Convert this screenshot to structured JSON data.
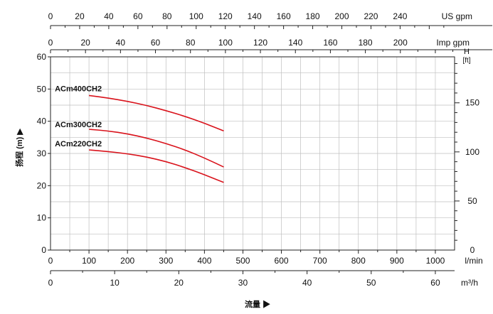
{
  "chart_data": {
    "type": "line",
    "colors": {
      "curve": "#d9121b",
      "grid": "#bfbfbf",
      "axis": "#222222"
    },
    "grid": true,
    "flow_axis": {
      "unit": "l/min",
      "range": [
        0,
        1050
      ],
      "ticks": [
        "0",
        "100",
        "200",
        "300",
        "400",
        "500",
        "600",
        "700",
        "800",
        "900",
        "1000"
      ],
      "tick_values": [
        0,
        100,
        200,
        300,
        400,
        500,
        600,
        700,
        800,
        900,
        1000
      ]
    },
    "m3h_axis": {
      "unit": "m³/h",
      "range": [
        0,
        63
      ],
      "ticks": [
        "0",
        "10",
        "20",
        "30",
        "40",
        "50",
        "60"
      ],
      "tick_values": [
        0,
        10,
        20,
        30,
        40,
        50,
        60
      ]
    },
    "us_gpm_axis": {
      "unit": "US gpm",
      "range": [
        0,
        277.4
      ],
      "ticks": [
        "0",
        "20",
        "40",
        "60",
        "80",
        "100",
        "120",
        "140",
        "160",
        "180",
        "200",
        "220",
        "240"
      ],
      "tick_values": [
        0,
        20,
        40,
        60,
        80,
        100,
        120,
        140,
        160,
        180,
        200,
        220,
        240
      ]
    },
    "imp_gpm_axis": {
      "unit": "Imp gpm",
      "range": [
        0,
        231
      ],
      "ticks": [
        "0",
        "20",
        "40",
        "60",
        "80",
        "100",
        "120",
        "140",
        "160",
        "180",
        "200"
      ],
      "tick_values": [
        0,
        20,
        40,
        60,
        80,
        100,
        120,
        140,
        160,
        180,
        200
      ]
    },
    "head_m_axis": {
      "ylabel": "扬程 (m) ▶",
      "range": [
        0,
        60
      ],
      "ticks": [
        "0",
        "10",
        "20",
        "30",
        "40",
        "50",
        "60"
      ],
      "tick_values": [
        0,
        10,
        20,
        30,
        40,
        50,
        60
      ]
    },
    "head_ft_axis": {
      "unit_top": "H",
      "unit": "[ft]",
      "range": [
        0,
        196.85
      ],
      "ticks": [
        "0",
        "50",
        "100",
        "150"
      ],
      "tick_values": [
        0,
        50,
        100,
        150
      ]
    },
    "xlabel": "流量 ▶",
    "series": [
      {
        "name": "ACm400CH2",
        "x": [
          100,
          150,
          200,
          250,
          300,
          350,
          400,
          450
        ],
        "y": [
          48.0,
          47.2,
          46.2,
          44.9,
          43.3,
          41.5,
          39.4,
          37.0
        ]
      },
      {
        "name": "ACm300CH2",
        "x": [
          100,
          150,
          200,
          250,
          300,
          350,
          400,
          450
        ],
        "y": [
          37.5,
          37.0,
          36.1,
          34.8,
          33.1,
          31.1,
          28.6,
          25.8
        ]
      },
      {
        "name": "ACm220CH2",
        "x": [
          100,
          150,
          200,
          250,
          300,
          350,
          400,
          450
        ],
        "y": [
          31.1,
          30.6,
          29.9,
          28.9,
          27.5,
          25.6,
          23.4,
          21.0
        ]
      }
    ]
  }
}
